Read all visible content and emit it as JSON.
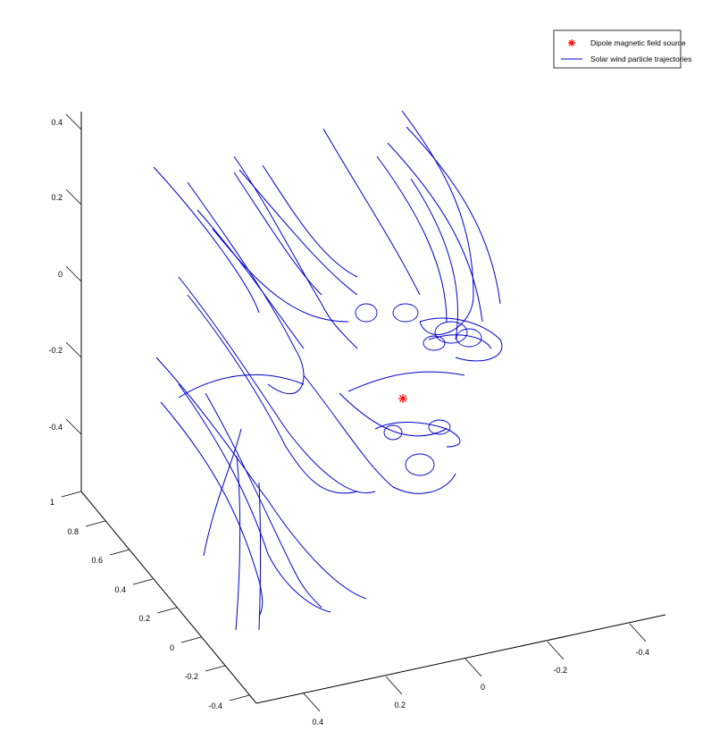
{
  "chart_data": {
    "type": "line3d",
    "title": "",
    "xlabel": "",
    "ylabel": "",
    "zlabel": "",
    "grid": false,
    "legend_position": "top-right",
    "axes": {
      "z": {
        "range": [
          -0.5,
          0.45
        ],
        "ticks": [
          "0.4",
          "0.2",
          "0",
          "-0.2",
          "-0.4"
        ]
      },
      "y": {
        "range": [
          -0.5,
          1.0
        ],
        "ticks": [
          "1",
          "0.8",
          "0.6",
          "0.4",
          "0.2",
          "0",
          "-0.2",
          "-0.4"
        ]
      },
      "x": {
        "range": [
          -0.5,
          0.5
        ],
        "ticks": [
          "0.4",
          "0.2",
          "0",
          "-0.2",
          "-0.4"
        ]
      }
    },
    "series": [
      {
        "name": "Dipole magnetic field source",
        "marker": "asterisk",
        "color": "#ff0000",
        "points": [
          [
            0.0,
            0.0,
            0.0
          ]
        ]
      },
      {
        "name": "Solar wind particle trajectories",
        "marker": "line",
        "color": "#0000cc",
        "trajectory_count": 30
      }
    ]
  }
}
